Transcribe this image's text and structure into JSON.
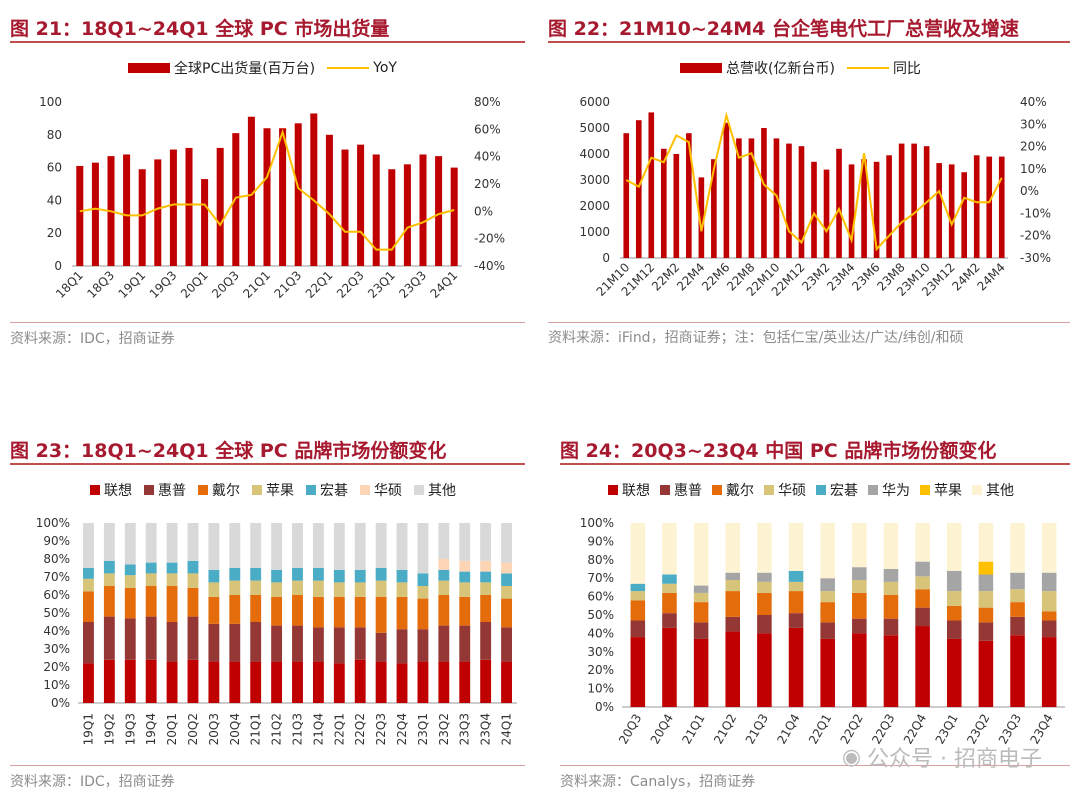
{
  "figures": [
    {
      "title": "图 21：18Q1~24Q1 全球 PC 市场出货量",
      "source": "资料来源：IDC，招商证券"
    },
    {
      "title": "图 22：21M10~24M4 台企笔电代工厂总营收及增速",
      "source": "资料来源：iFind，招商证券；注：包括仁宝/英业达/广达/纬创/和硕"
    },
    {
      "title": "图 23：18Q1~24Q1 全球 PC 品牌市场份额变化",
      "source": "资料来源：IDC，招商证券"
    },
    {
      "title": "图 24：20Q3~23Q4 中国 PC 品牌市场份额变化",
      "source": "资料来源：Canalys，招商证券"
    }
  ],
  "watermark": "公众号 · 招商电子",
  "colors": {
    "bar": "#c00000",
    "line": "#ffc000",
    "title": "#a6192e"
  },
  "chart_data": [
    {
      "type": "bar",
      "title": "18Q1~24Q1 全球 PC 市场出货量",
      "categories": [
        "18Q1",
        "18Q2",
        "18Q3",
        "18Q4",
        "19Q1",
        "19Q2",
        "19Q3",
        "19Q4",
        "20Q1",
        "20Q2",
        "20Q3",
        "20Q4",
        "21Q1",
        "21Q2",
        "21Q3",
        "21Q4",
        "22Q1",
        "22Q2",
        "22Q3",
        "22Q4",
        "23Q1",
        "23Q2",
        "23Q3",
        "23Q4",
        "24Q1"
      ],
      "tick_labels": [
        "18Q1",
        "18Q3",
        "19Q1",
        "19Q3",
        "20Q1",
        "20Q3",
        "21Q1",
        "21Q3",
        "22Q1",
        "22Q3",
        "23Q1",
        "23Q3",
        "24Q1"
      ],
      "series": [
        {
          "name": "全球PC出货量(百万台)",
          "type": "bar",
          "axis": "left",
          "values": [
            61,
            63,
            67,
            68,
            59,
            65,
            71,
            72,
            53,
            72,
            81,
            91,
            84,
            84,
            87,
            93,
            80,
            71,
            74,
            68,
            59,
            62,
            68,
            67,
            60
          ]
        },
        {
          "name": "YoY",
          "type": "line",
          "axis": "right",
          "values": [
            0,
            2,
            0,
            -3,
            -3,
            2,
            5,
            5,
            5,
            -10,
            10,
            12,
            25,
            58,
            17,
            8,
            -2,
            -15,
            -15,
            -28,
            -28,
            -12,
            -8,
            -2,
            1
          ]
        }
      ],
      "ylim_left": [
        0,
        100
      ],
      "yticks_left": [
        "0",
        "20",
        "40",
        "60",
        "80",
        "100"
      ],
      "ylim_right": [
        -40,
        80
      ],
      "yticks_right": [
        "-40%",
        "-20%",
        "0%",
        "20%",
        "40%",
        "60%",
        "80%"
      ]
    },
    {
      "type": "bar",
      "title": "21M10~24M4 台企笔电代工厂总营收及增速",
      "categories": [
        "21M10",
        "21M11",
        "21M12",
        "22M1",
        "22M2",
        "22M3",
        "22M4",
        "22M5",
        "22M6",
        "22M7",
        "22M8",
        "22M9",
        "22M10",
        "22M11",
        "22M12",
        "23M1",
        "23M2",
        "23M3",
        "23M4",
        "23M5",
        "23M6",
        "23M7",
        "23M8",
        "23M9",
        "23M10",
        "23M11",
        "23M12",
        "24M1",
        "24M2",
        "24M3",
        "24M4"
      ],
      "tick_labels": [
        "21M10",
        "21M12",
        "22M2",
        "22M4",
        "22M6",
        "22M8",
        "22M10",
        "22M12",
        "23M2",
        "23M4",
        "23M6",
        "23M8",
        "23M10",
        "23M12",
        "24M2",
        "24M4"
      ],
      "series": [
        {
          "name": "总营收(亿新台币)",
          "type": "bar",
          "axis": "left",
          "values": [
            4800,
            5300,
            5600,
            4200,
            4000,
            4800,
            3100,
            3800,
            5200,
            4600,
            4600,
            5000,
            4600,
            4400,
            4300,
            3700,
            3400,
            4200,
            3600,
            3800,
            3700,
            3950,
            4400,
            4400,
            4300,
            3650,
            3600,
            3300,
            3950,
            3900,
            3900
          ]
        },
        {
          "name": "同比",
          "type": "line",
          "axis": "right",
          "values": [
            5,
            2,
            15,
            13,
            25,
            22,
            -18,
            10,
            34,
            15,
            17,
            3,
            -2,
            -18,
            -23,
            -10,
            -18,
            -8,
            -22,
            17,
            -26,
            -20,
            -14,
            -10,
            -5,
            0,
            -15,
            -3,
            -5,
            -5,
            6
          ]
        }
      ],
      "ylim_left": [
        0,
        6000
      ],
      "yticks_left": [
        "0",
        "1000",
        "2000",
        "3000",
        "4000",
        "5000",
        "6000"
      ],
      "ylim_right": [
        -30,
        40
      ],
      "yticks_right": [
        "-30%",
        "-20%",
        "-10%",
        "0%",
        "10%",
        "20%",
        "30%",
        "40%"
      ]
    },
    {
      "type": "stacked_bar",
      "title": "18Q1~24Q1 全球 PC 品牌市场份额变化",
      "categories": [
        "19Q1",
        "19Q2",
        "19Q3",
        "19Q4",
        "20Q1",
        "20Q2",
        "20Q3",
        "20Q4",
        "21Q1",
        "21Q2",
        "21Q3",
        "21Q4",
        "22Q1",
        "22Q2",
        "22Q3",
        "22Q4",
        "23Q1",
        "23Q2",
        "23Q3",
        "23Q4",
        "24Q1"
      ],
      "series": [
        {
          "name": "联想",
          "color": "#c00000",
          "values": [
            22,
            24,
            24,
            24,
            23,
            24,
            23,
            23,
            23,
            23,
            23,
            23,
            22,
            24,
            23,
            22,
            23,
            23,
            23,
            24,
            23
          ]
        },
        {
          "name": "惠普",
          "color": "#953735",
          "values": [
            23,
            24,
            23,
            24,
            22,
            24,
            21,
            21,
            22,
            20,
            20,
            19,
            20,
            18,
            16,
            19,
            18,
            20,
            20,
            21,
            19
          ]
        },
        {
          "name": "戴尔",
          "color": "#e46c0a",
          "values": [
            17,
            17,
            17,
            17,
            20,
            16,
            15,
            16,
            15,
            16,
            17,
            17,
            17,
            17,
            20,
            18,
            17,
            17,
            16,
            15,
            16
          ]
        },
        {
          "name": "苹果",
          "color": "#d7c478",
          "values": [
            7,
            7,
            7,
            7,
            7,
            8,
            8,
            8,
            8,
            8,
            8,
            9,
            8,
            8,
            9,
            8,
            7,
            8,
            8,
            7,
            7
          ]
        },
        {
          "name": "宏碁",
          "color": "#4bacc6",
          "values": [
            6,
            7,
            6,
            6,
            6,
            7,
            7,
            7,
            7,
            7,
            7,
            7,
            7,
            7,
            7,
            7,
            7,
            6,
            6,
            6,
            7
          ]
        },
        {
          "name": "华硕",
          "color": "#fcd5b4",
          "values": [
            0,
            0,
            0,
            0,
            0,
            0,
            0,
            0,
            0,
            0,
            0,
            0,
            0,
            0,
            0,
            0,
            0,
            6,
            6,
            6,
            6
          ]
        },
        {
          "name": "其他",
          "color": "#d9d9d9",
          "values": [
            25,
            21,
            23,
            22,
            22,
            21,
            26,
            25,
            25,
            26,
            25,
            25,
            26,
            26,
            25,
            26,
            28,
            20,
            21,
            21,
            22
          ]
        }
      ],
      "ylim": [
        0,
        100
      ],
      "yticks": [
        "0%",
        "10%",
        "20%",
        "30%",
        "40%",
        "50%",
        "60%",
        "70%",
        "80%",
        "90%",
        "100%"
      ]
    },
    {
      "type": "stacked_bar",
      "title": "20Q3~23Q4 中国 PC 品牌市场份额变化",
      "categories": [
        "20Q3",
        "20Q4",
        "21Q1",
        "21Q2",
        "21Q3",
        "21Q4",
        "22Q1",
        "22Q2",
        "22Q3",
        "22Q4",
        "23Q1",
        "23Q2",
        "23Q3",
        "23Q4"
      ],
      "tick_labels": [
        "20Q3",
        "20Q4",
        "21Q1",
        "21Q2",
        "21Q3",
        "21Q4",
        "22Q1",
        "22Q2",
        "22Q3",
        "22Q4",
        "23Q1",
        "23Q2",
        "23Q3",
        "23Q4"
      ],
      "series": [
        {
          "name": "联想",
          "color": "#c00000",
          "values": [
            38,
            43,
            37,
            41,
            40,
            43,
            37,
            40,
            39,
            44,
            37,
            36,
            39,
            38
          ]
        },
        {
          "name": "惠普",
          "color": "#953735",
          "values": [
            9,
            8,
            9,
            8,
            10,
            8,
            9,
            8,
            9,
            10,
            10,
            10,
            10,
            9
          ]
        },
        {
          "name": "戴尔",
          "color": "#e46c0a",
          "values": [
            11,
            11,
            11,
            14,
            12,
            12,
            11,
            14,
            13,
            10,
            8,
            8,
            8,
            5
          ]
        },
        {
          "name": "华硕",
          "color": "#d7c478",
          "values": [
            5,
            5,
            5,
            6,
            6,
            5,
            6,
            7,
            7,
            7,
            8,
            9,
            7,
            11
          ]
        },
        {
          "name": "宏碁",
          "color": "#4bacc6",
          "values": [
            4,
            5,
            0,
            0,
            0,
            6,
            0,
            0,
            0,
            0,
            0,
            0,
            0,
            0
          ]
        },
        {
          "name": "华为",
          "color": "#a5a5a5",
          "values": [
            0,
            0,
            4,
            4,
            5,
            0,
            7,
            7,
            7,
            8,
            11,
            9,
            9,
            10
          ]
        },
        {
          "name": "苹果",
          "color": "#ffc000",
          "values": [
            0,
            0,
            0,
            0,
            0,
            0,
            0,
            0,
            0,
            0,
            0,
            7,
            0,
            0
          ]
        },
        {
          "name": "其他",
          "color": "#fdf3d3",
          "values": [
            33,
            28,
            34,
            27,
            27,
            26,
            30,
            24,
            25,
            21,
            26,
            21,
            27,
            27
          ]
        }
      ],
      "ylim": [
        0,
        100
      ],
      "yticks": [
        "0%",
        "10%",
        "20%",
        "30%",
        "40%",
        "50%",
        "60%",
        "70%",
        "80%",
        "90%",
        "100%"
      ]
    }
  ]
}
